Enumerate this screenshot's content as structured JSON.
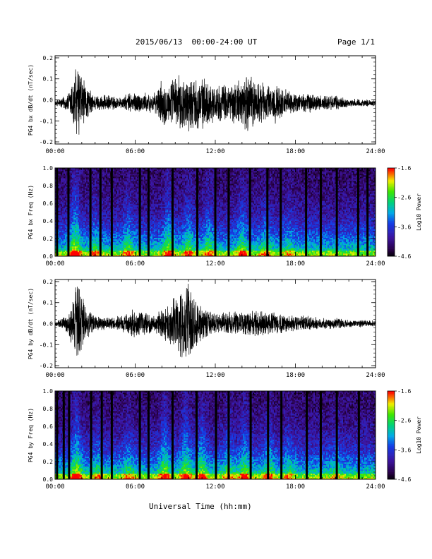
{
  "header": {
    "title": "2015/06/13  00:00-24:00 UT",
    "page": "Page 1/1"
  },
  "footer": {
    "xlabel": "Universal Time (hh:mm)"
  },
  "chart_data": [
    {
      "type": "line",
      "ylabel": "PG4 bx dB/dt (nT/sec)",
      "xlabel": "",
      "x_ticks": [
        "00:00",
        "06:00",
        "12:00",
        "18:00",
        "24:00"
      ],
      "xlim": [
        0,
        24
      ],
      "ylim": [
        -0.21,
        0.21
      ],
      "y_ticks": [
        -0.2,
        -0.1,
        0.0,
        0.1,
        0.2
      ],
      "y_tick_labels": [
        "-0.2",
        "-0.1",
        "0.0",
        "0.1",
        "0.2"
      ],
      "baseline": -0.015,
      "envelope": {
        "hours": [
          0,
          1.0,
          1.5,
          1.8,
          2.3,
          3.0,
          4.0,
          5.0,
          5.8,
          6.5,
          7.5,
          8.0,
          8.5,
          9.0,
          10.0,
          11.0,
          12.0,
          13.0,
          14.0,
          14.5,
          15.0,
          16.0,
          16.5,
          17.5,
          18.0,
          19.0,
          20.0,
          21.0,
          22.0,
          23.0,
          24.0
        ],
        "amplitude": [
          0.01,
          0.05,
          0.19,
          0.2,
          0.09,
          0.04,
          0.04,
          0.03,
          0.06,
          0.05,
          0.05,
          0.12,
          0.1,
          0.14,
          0.14,
          0.13,
          0.09,
          0.1,
          0.12,
          0.16,
          0.12,
          0.09,
          0.1,
          0.06,
          0.05,
          0.05,
          0.04,
          0.04,
          0.02,
          0.02,
          0.015
        ]
      }
    },
    {
      "type": "heatmap",
      "ylabel": "PG4 bx Freq (Hz)",
      "x_ticks": [
        "00:00",
        "06:00",
        "12:00",
        "18:00",
        "24:00"
      ],
      "xlim": [
        0,
        24
      ],
      "ylim": [
        0,
        1.0
      ],
      "y_ticks": [
        0.0,
        0.2,
        0.4,
        0.6,
        0.8,
        1.0
      ],
      "y_tick_labels": [
        "0.0",
        "0.2",
        "0.4",
        "0.6",
        "0.8",
        "1.0"
      ],
      "colorbar": {
        "label": "Log10 Power",
        "range": [
          -4.6,
          -1.6
        ],
        "ticks": [
          -1.6,
          -2.6,
          -3.6,
          -4.6
        ],
        "tick_labels": [
          "-1.6",
          "-2.6",
          "-3.6",
          "-4.6"
        ]
      },
      "gap_hours": [
        0.15,
        1.0,
        2.65,
        3.4,
        4.25,
        6.35,
        7.0,
        8.8,
        10.65,
        12.0,
        13.0,
        14.6,
        15.9,
        16.9,
        18.8,
        19.9,
        21.1,
        22.7,
        23.4
      ],
      "activity_hours": [
        1.5,
        3.0,
        5.5,
        8.5,
        10.0,
        11.5,
        14.0,
        15.8,
        17.5
      ],
      "activity_strength": [
        1.0,
        0.5,
        0.6,
        0.8,
        0.7,
        0.65,
        0.7,
        0.55,
        0.4
      ]
    },
    {
      "type": "line",
      "ylabel": "PG4 by dB/dt (nT/sec)",
      "xlabel": "",
      "x_ticks": [
        "00:00",
        "06:00",
        "12:00",
        "18:00",
        "24:00"
      ],
      "xlim": [
        0,
        24
      ],
      "ylim": [
        -0.21,
        0.21
      ],
      "y_ticks": [
        -0.2,
        -0.1,
        0.0,
        0.1,
        0.2
      ],
      "y_tick_labels": [
        "-0.2",
        "-0.1",
        "0.0",
        "0.1",
        "0.2"
      ],
      "baseline": 0.0,
      "envelope": {
        "hours": [
          0,
          1.0,
          1.5,
          1.8,
          2.3,
          3.0,
          4.0,
          5.0,
          5.8,
          6.5,
          7.5,
          8.0,
          8.5,
          9.0,
          9.5,
          9.9,
          10.5,
          11.0,
          12.0,
          13.0,
          14.0,
          15.0,
          16.0,
          17.0,
          18.0,
          19.0,
          20.0,
          21.0,
          22.0,
          23.0,
          24.0
        ],
        "amplitude": [
          0.01,
          0.05,
          0.19,
          0.21,
          0.09,
          0.04,
          0.03,
          0.04,
          0.07,
          0.06,
          0.04,
          0.08,
          0.1,
          0.14,
          0.17,
          0.21,
          0.14,
          0.09,
          0.05,
          0.06,
          0.06,
          0.07,
          0.06,
          0.05,
          0.04,
          0.04,
          0.03,
          0.03,
          0.02,
          0.02,
          0.015
        ]
      }
    },
    {
      "type": "heatmap",
      "ylabel": "PG4 by Freq (Hz)",
      "x_ticks": [
        "00:00",
        "06:00",
        "12:00",
        "18:00",
        "24:00"
      ],
      "xlim": [
        0,
        24
      ],
      "ylim": [
        0,
        1.0
      ],
      "y_ticks": [
        0.0,
        0.2,
        0.4,
        0.6,
        0.8,
        1.0
      ],
      "y_tick_labels": [
        "0.0",
        "0.2",
        "0.4",
        "0.6",
        "0.8",
        "1.0"
      ],
      "colorbar": {
        "label": "Log10 Power",
        "range": [
          -4.6,
          -1.6
        ],
        "ticks": [
          -1.6,
          -2.6,
          -3.6,
          -4.6
        ],
        "tick_labels": [
          "-1.6",
          "-2.6",
          "-3.6",
          "-4.6"
        ]
      },
      "gap_hours": [
        0.15,
        0.65,
        1.05,
        2.7,
        3.5,
        4.25,
        6.35,
        7.0,
        8.8,
        10.6,
        12.05,
        13.0,
        14.65,
        15.95,
        16.95,
        18.85,
        19.9,
        21.1,
        22.75
      ],
      "activity_hours": [
        1.6,
        3.2,
        5.5,
        8.2,
        9.8,
        11.0,
        13.0,
        14.2,
        16.0,
        17.5,
        21.0
      ],
      "activity_strength": [
        1.0,
        0.5,
        0.5,
        0.85,
        0.9,
        0.8,
        0.6,
        0.75,
        0.7,
        0.45,
        0.35
      ]
    }
  ]
}
